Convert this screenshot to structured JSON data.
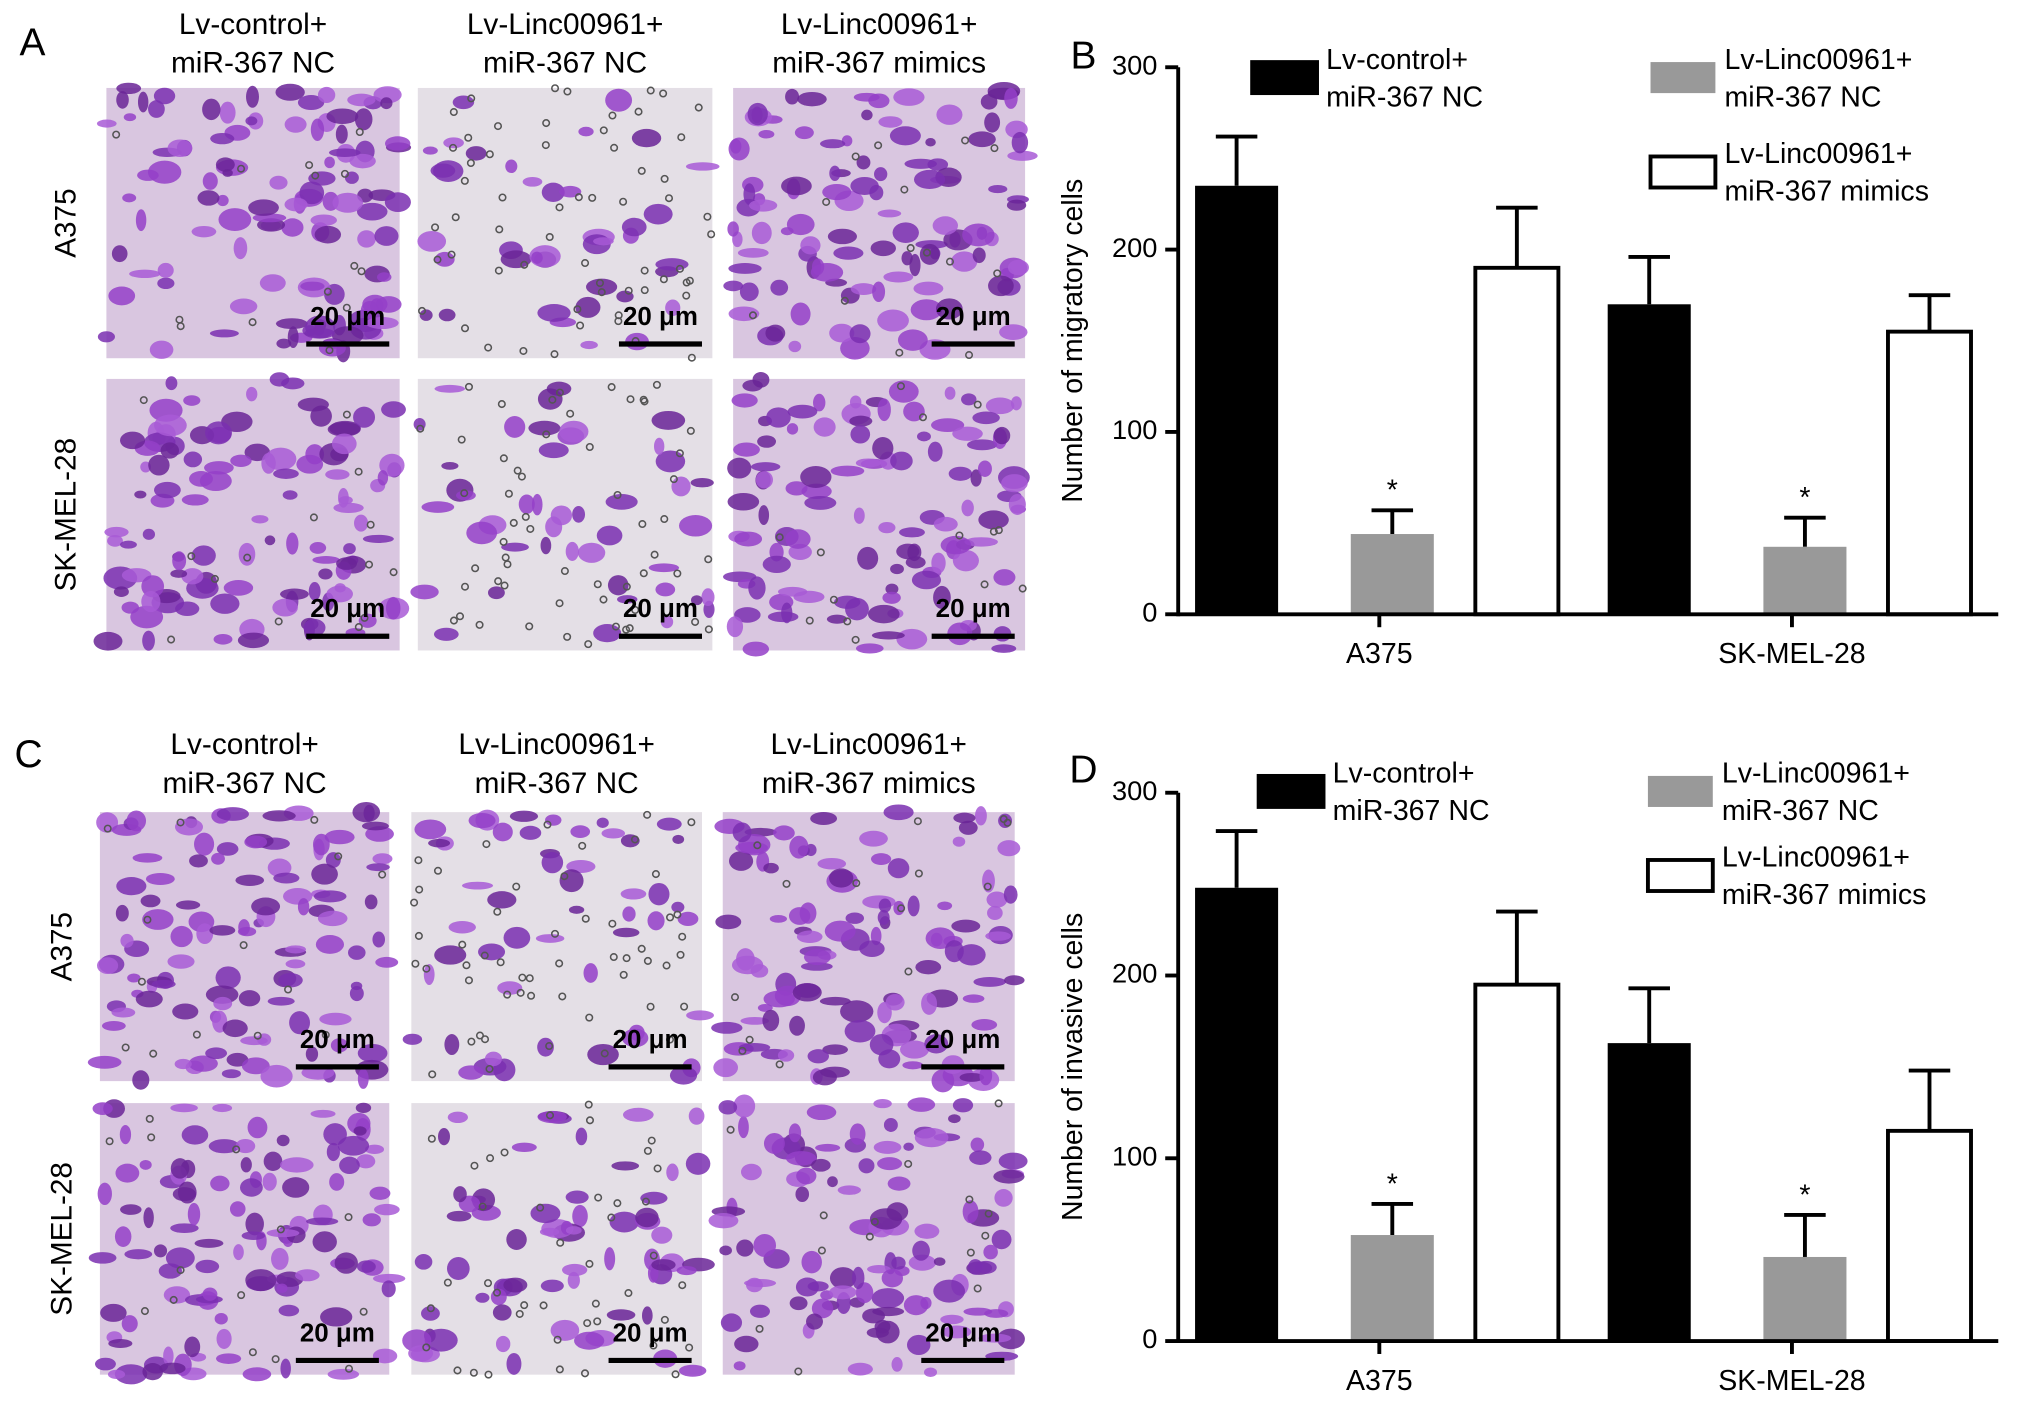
{
  "panels": [
    {
      "label": "A",
      "columns": [
        "Lv-control+\nmiR-367 NC",
        "Lv-Linc00961+\nmiR-367 NC",
        "Lv-Linc00961+\nmiR-367 mimics"
      ],
      "rows": [
        "A375",
        "SK-MEL-28"
      ],
      "scale_bar": "20 μm"
    },
    {
      "label": "C",
      "columns": [
        "Lv-control+\nmiR-367 NC",
        "Lv-Linc00961+\nmiR-367 NC",
        "Lv-Linc00961+\nmiR-367 mimics"
      ],
      "rows": [
        "A375",
        "SK-MEL-28"
      ],
      "scale_bar": "20 μm"
    }
  ],
  "chart_data": [
    {
      "type": "bar",
      "panel_label": "B",
      "y_label": "Number of migratory cells",
      "categories": [
        "A375",
        "SK-MEL-28"
      ],
      "ylim": [
        0,
        300
      ],
      "yticks": [
        0,
        100,
        200,
        300
      ],
      "series": [
        {
          "name": "Lv-control+\nmiR-367 NC",
          "color": "#000000",
          "values": [
            235,
            170
          ],
          "errors": [
            27,
            26
          ]
        },
        {
          "name": "Lv-Linc00961+\nmiR-367 NC",
          "color": "#999999",
          "values": [
            44,
            37
          ],
          "errors": [
            13,
            16
          ],
          "markers": [
            "*",
            "*"
          ]
        },
        {
          "name": "Lv-Linc00961+\nmiR-367 mimics",
          "color": "#ffffff",
          "values": [
            190,
            155
          ],
          "errors": [
            33,
            20
          ]
        }
      ]
    },
    {
      "type": "bar",
      "panel_label": "D",
      "y_label": "Number of invasive cells",
      "categories": [
        "A375",
        "SK-MEL-28"
      ],
      "ylim": [
        0,
        300
      ],
      "yticks": [
        0,
        100,
        200,
        300
      ],
      "series": [
        {
          "name": "Lv-control+\nmiR-367 NC",
          "color": "#000000",
          "values": [
            248,
            163
          ],
          "errors": [
            31,
            30
          ]
        },
        {
          "name": "Lv-Linc00961+\nmiR-367 NC",
          "color": "#999999",
          "values": [
            58,
            46
          ],
          "errors": [
            17,
            23
          ],
          "markers": [
            "*",
            "*"
          ]
        },
        {
          "name": "Lv-Linc00961+\nmiR-367 mimics",
          "color": "#ffffff",
          "values": [
            195,
            115
          ],
          "errors": [
            40,
            33
          ]
        }
      ]
    }
  ]
}
